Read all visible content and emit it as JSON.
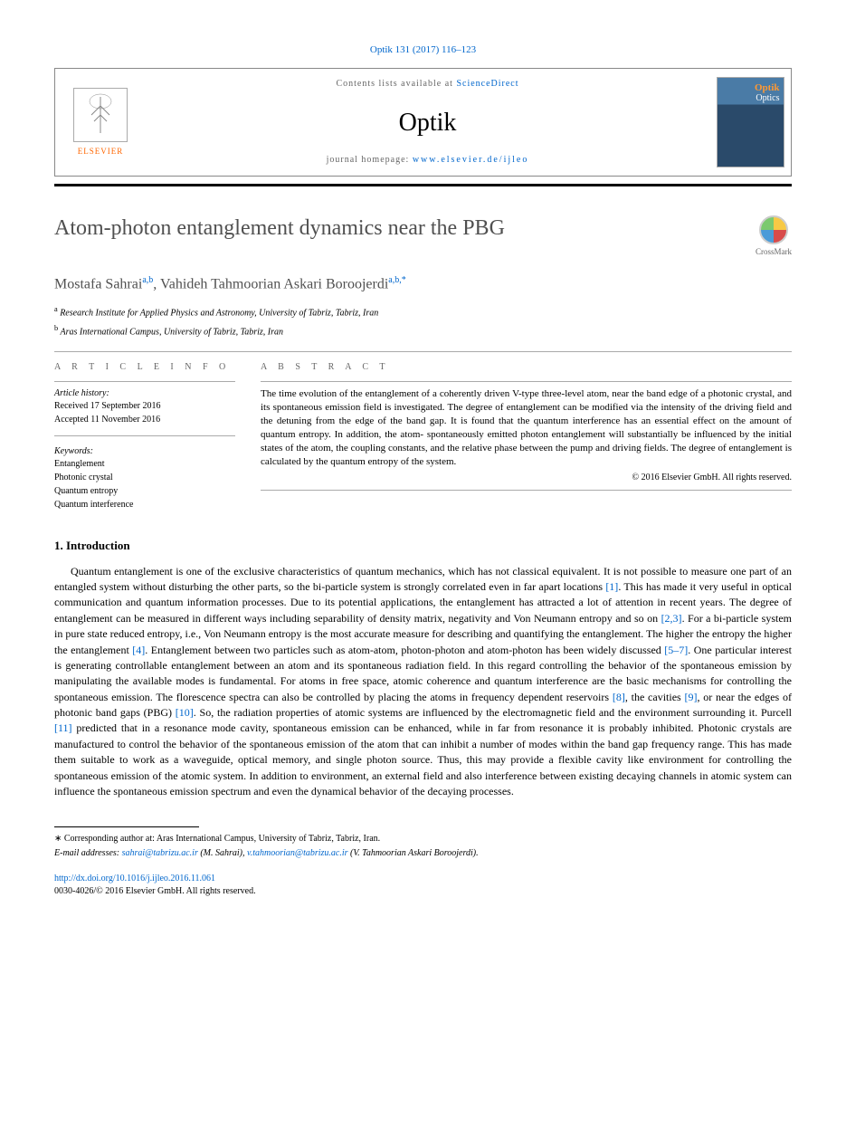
{
  "citation": "Optik 131 (2017) 116–123",
  "header": {
    "publisher_name": "ELSEVIER",
    "contents_prefix": "Contents lists available at ",
    "contents_link": "ScienceDirect",
    "journal_name": "Optik",
    "homepage_prefix": "journal homepage: ",
    "homepage_url": "www.elsevier.de/ijleo",
    "cover_title_top": "Optik",
    "cover_title_bottom": "Optics"
  },
  "crossmark": "CrossMark",
  "article": {
    "title": "Atom-photon entanglement dynamics near the PBG",
    "authors_html": "Mostafa Sahrai",
    "author1": "Mostafa Sahrai",
    "author1_sup": "a,b",
    "author2": "Vahideh Tahmoorian Askari Boroojerdi",
    "author2_sup": "a,b,",
    "author2_star": "*",
    "affiliations": [
      {
        "sup": "a",
        "text": "Research Institute for Applied Physics and Astronomy, University of Tabriz, Tabriz, Iran"
      },
      {
        "sup": "b",
        "text": "Aras International Campus, University of Tabriz, Tabriz, Iran"
      }
    ]
  },
  "info": {
    "heading": "a r t i c l e   i n f o",
    "history_label": "Article history:",
    "received": "Received 17 September 2016",
    "accepted": "Accepted 11 November 2016",
    "keywords_label": "Keywords:",
    "keywords": [
      "Entanglement",
      "Photonic crystal",
      "Quantum entropy",
      "Quantum interference"
    ]
  },
  "abstract": {
    "heading": "a b s t r a c t",
    "text": "The time evolution of the entanglement of a coherently driven V-type three-level atom, near the band edge of a photonic crystal, and its spontaneous emission field is investigated. The degree of entanglement can be modified via the intensity of the driving field and the detuning from the edge of the band gap. It is found that the quantum interference has an essential effect on the amount of quantum entropy. In addition, the atom- spontaneously emitted photon entanglement will substantially be influenced by the initial states of the atom, the coupling constants, and the relative phase between the pump and driving fields. The degree of entanglement is calculated by the quantum entropy of the system.",
    "copyright": "© 2016 Elsevier GmbH. All rights reserved."
  },
  "sections": {
    "intro_heading": "1.  Introduction",
    "intro_body": "Quantum entanglement is one of the exclusive characteristics of quantum mechanics, which has not classical equivalent. It is not possible to measure one part of an entangled system without disturbing the other parts, so the bi-particle system is strongly correlated even in far apart locations [1]. This has made it very useful in optical communication and quantum information processes. Due to its potential applications, the entanglement has attracted a lot of attention in recent years. The degree of entanglement can be measured in different ways including separability of density matrix, negativity and Von Neumann entropy and so on [2,3]. For a bi-particle system in pure state reduced entropy, i.e., Von Neumann entropy is the most accurate measure for describing and quantifying the entanglement. The higher the entropy the higher the entanglement [4]. Entanglement between two particles such as atom-atom, photon-photon and atom-photon has been widely discussed [5–7]. One particular interest is generating controllable entanglement between an atom and its spontaneous radiation field. In this regard controlling the behavior of the spontaneous emission by manipulating the available modes is fundamental. For atoms in free space, atomic coherence and quantum interference are the basic mechanisms for controlling the spontaneous emission. The florescence spectra can also be controlled by placing the atoms in frequency dependent reservoirs [8], the cavities [9], or near the edges of photonic band gaps (PBG) [10]. So, the radiation properties of atomic systems are influenced by the electromagnetic field and the environment surrounding it. Purcell [11] predicted that in a resonance mode cavity, spontaneous emission can be enhanced, while in far from resonance it is probably inhibited. Photonic crystals are manufactured to control the behavior of the spontaneous emission of the atom that can inhibit a number of modes within the band gap frequency range. This has made them suitable to work as a waveguide, optical memory, and single photon source. Thus, this may provide a flexible cavity like environment for controlling the spontaneous emission of the atomic system. In addition to environment, an external field and also interference between existing decaying channels in atomic system can influence the spontaneous emission spectrum and even the dynamical behavior of the decaying processes."
  },
  "refs_blue": [
    "[1]",
    "[2,3]",
    "[4]",
    "[5–7]",
    "[8]",
    "[9]",
    "[10]",
    "[11]"
  ],
  "footer": {
    "corresponding": "Corresponding author at: Aras International Campus, University of Tabriz, Tabriz, Iran.",
    "emails_label": "E-mail addresses:",
    "email1": "sahrai@tabrizu.ac.ir",
    "email1_name": "(M. Sahrai),",
    "email2": "v.tahmoorian@tabrizu.ac.ir",
    "email2_name": "(V. Tahmoorian Askari Boroojerdi).",
    "doi": "http://dx.doi.org/10.1016/j.ijleo.2016.11.061",
    "issn": "0030-4026/© 2016 Elsevier GmbH. All rights reserved."
  },
  "colors": {
    "link": "#0066cc",
    "orange": "#ff6600",
    "title_gray": "#505050",
    "rule_gray": "#aaaaaa",
    "text": "#000000"
  }
}
